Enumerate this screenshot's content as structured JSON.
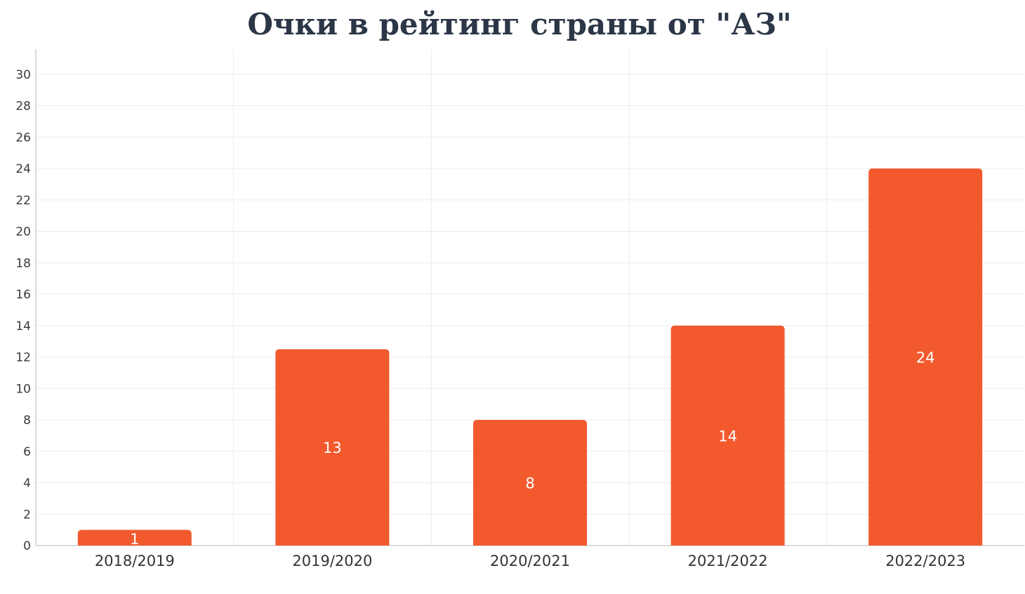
{
  "chart_data": {
    "type": "bar",
    "title": "Очки в рейтинг страны от \"АЗ\"",
    "categories": [
      "2018/2019",
      "2019/2020",
      "2020/2021",
      "2021/2022",
      "2022/2023"
    ],
    "values": [
      1,
      12.5,
      8,
      14,
      24
    ],
    "data_labels": [
      "1",
      "13",
      "8",
      "14",
      "24"
    ],
    "ylim": [
      0,
      31.6
    ],
    "yticks": [
      0,
      2,
      4,
      6,
      8,
      10,
      12,
      14,
      16,
      18,
      20,
      22,
      24,
      26,
      28,
      30
    ],
    "xlabel": "",
    "ylabel": "",
    "grid": true,
    "legend": "none",
    "bar_color": "#f25a2e",
    "grid_color": "#ececec",
    "axis_color": "#cfcfcf",
    "title_color": "#2b3646"
  }
}
